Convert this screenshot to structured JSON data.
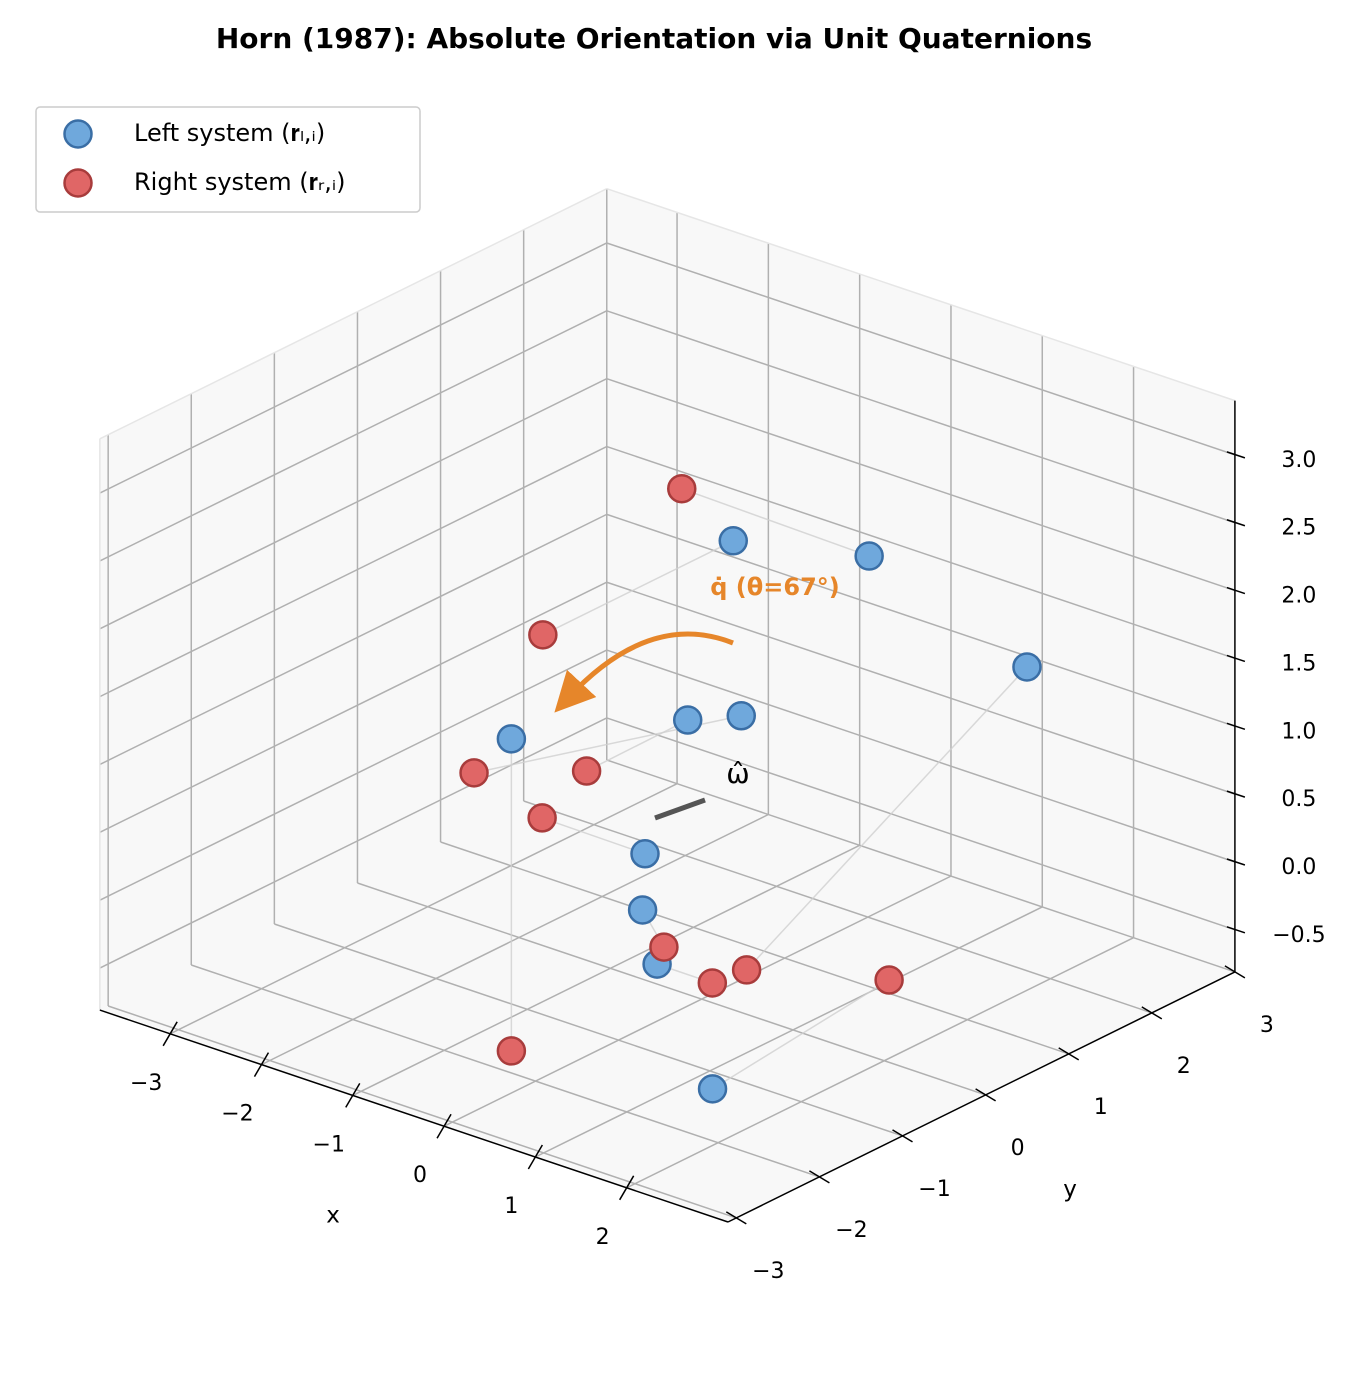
{
  "chart_data": {
    "type": "scatter3d",
    "title": "Horn (1987): Absolute Orientation via Unit Quaternions",
    "xlabel": "x",
    "ylabel": "y",
    "xlim": [
      -3.77,
      3.11
    ],
    "ylim": [
      -3.1,
      3.0
    ],
    "zlim": [
      -0.81,
      3.4
    ],
    "xticks": [
      {
        "value": -3,
        "label": "−3"
      },
      {
        "value": -2,
        "label": "−2"
      },
      {
        "value": -1,
        "label": "−1"
      },
      0,
      1,
      2
    ],
    "yticks": [
      {
        "value": -3,
        "label": "−3"
      },
      {
        "value": -2,
        "label": "−2"
      },
      {
        "value": -1,
        "label": "−1"
      },
      0,
      1,
      2,
      3
    ],
    "zticks": [
      {
        "value": -0.5,
        "label": "−0.5"
      },
      {
        "value": 0,
        "label": "0.0"
      },
      {
        "value": 0.5,
        "label": "0.5"
      },
      {
        "value": 1,
        "label": "1.0"
      },
      {
        "value": 1.5,
        "label": "1.5"
      },
      {
        "value": 2,
        "label": "2.0"
      },
      {
        "value": 2.5,
        "label": "2.5"
      },
      {
        "value": 3,
        "label": "3.0"
      }
    ],
    "grid": true,
    "legend": "upper left",
    "annotations": [
      "q̇ (θ=67°)",
      "ω̂"
    ],
    "series": [
      {
        "name": "Left system (𝐫ₗ,ᵢ)",
        "color": "#6fa8dc",
        "edgecolor": "#3a6ea5",
        "x": [
          0.0,
          1.17,
          -0.81,
          -0.89,
          1.63,
          0.34,
          -0.11,
          -0.12,
          -0.24,
          1.87
        ],
        "y": [
          -2.29,
          0.73,
          1.27,
          0.81,
          -1.66,
          -0.91,
          -0.59,
          -0.55,
          0.74,
          1.86
        ],
        "z": [
          1.8,
          2.5,
          2.0,
          0.8,
          -0.6,
          -0.2,
          0.0,
          0.4,
          1.0,
          1.5
        ]
      },
      {
        "name": "Right system (𝐫ᵣ,ᵢ)",
        "color": "#e06666",
        "edgecolor": "#a83c3c",
        "x": [
          0.0,
          -0.4,
          -2.24,
          -1.77,
          1.88,
          0.59,
          0.16,
          -1.62,
          -2.12,
          0.82
        ],
        "y": [
          -2.29,
          0.2,
          0.55,
          0.56,
          0.19,
          -0.52,
          -0.63,
          -0.14,
          -0.41,
          -0.36
        ],
        "z": [
          -0.5,
          2.8,
          1.2,
          0.3,
          -0.3,
          -0.4,
          -0.2,
          0.2,
          0.5,
          -0.3
        ]
      }
    ]
  }
}
